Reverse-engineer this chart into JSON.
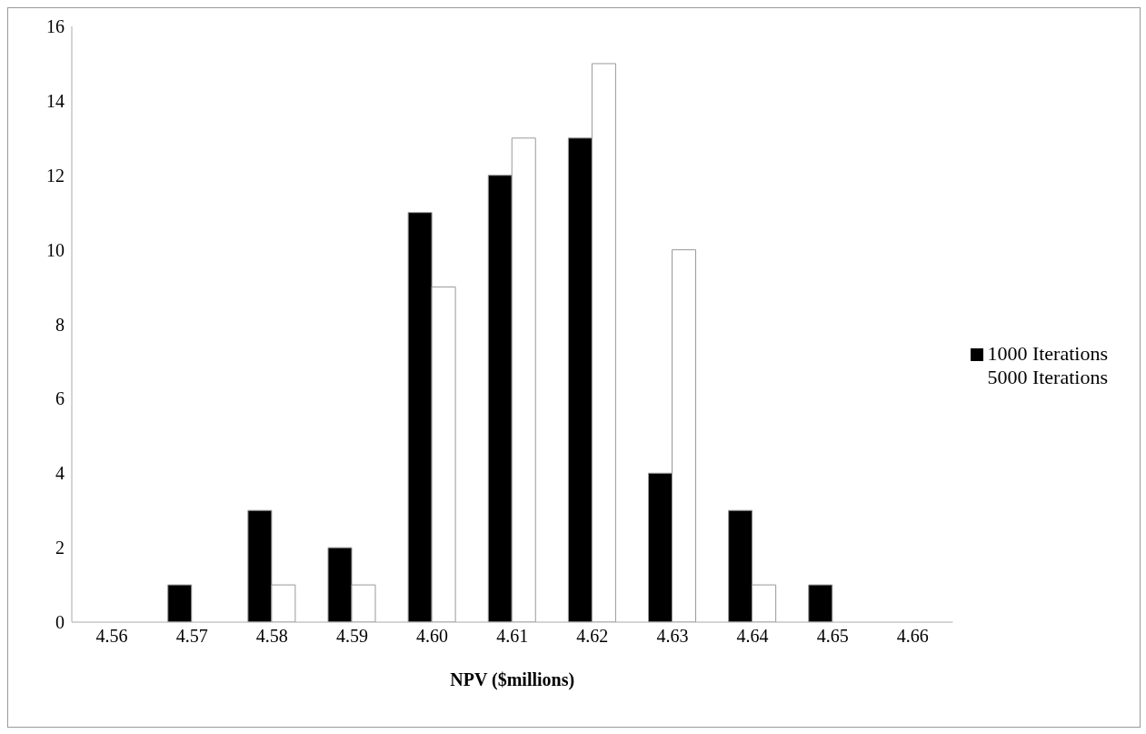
{
  "chart_data": {
    "type": "bar",
    "xlabel": "NPV ($millions)",
    "categories": [
      "4.56",
      "4.57",
      "4.58",
      "4.59",
      "4.60",
      "4.61",
      "4.62",
      "4.63",
      "4.64",
      "4.65",
      "4.66"
    ],
    "series": [
      {
        "name": "1000 Iterations",
        "color": "#000000",
        "values": [
          0,
          1,
          3,
          2,
          11,
          12,
          13,
          4,
          3,
          1,
          0
        ]
      },
      {
        "name": "5000 Iterations",
        "color": "#ffffff",
        "values": [
          0,
          0,
          1,
          1,
          9,
          13,
          15,
          10,
          1,
          0,
          0
        ]
      }
    ],
    "ylim": [
      0,
      16
    ],
    "yticks": [
      0,
      2,
      4,
      6,
      8,
      10,
      12,
      14,
      16
    ],
    "grid": false,
    "legend": "right"
  }
}
